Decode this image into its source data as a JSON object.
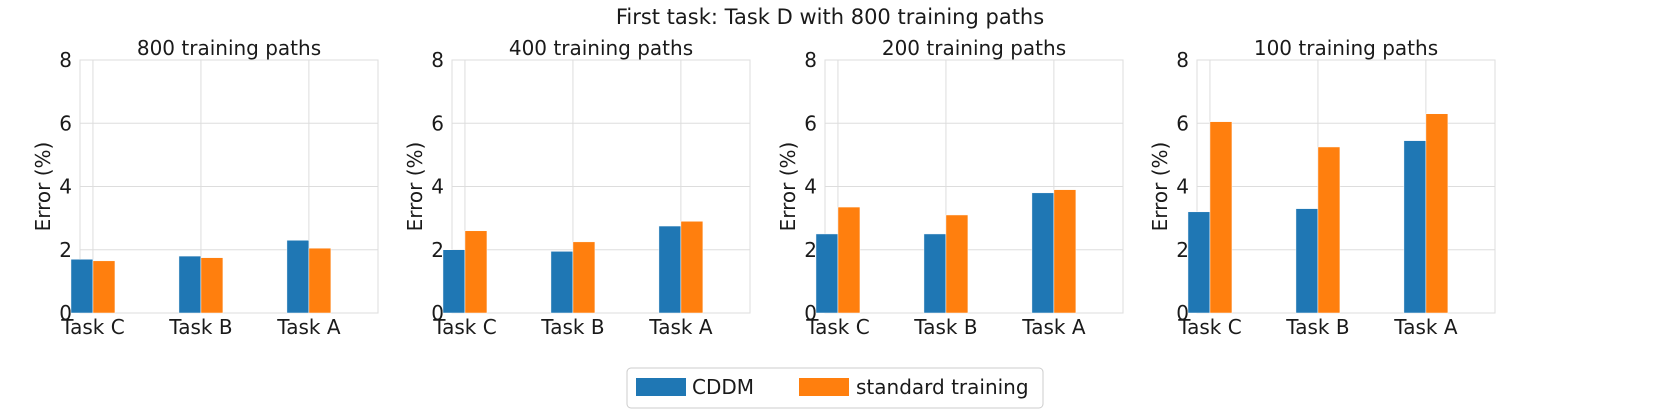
{
  "chart_data": {
    "type": "bar",
    "suptitle": "First task: Task D with 800 training paths",
    "categories": [
      "Task C",
      "Task B",
      "Task A"
    ],
    "ylabel": "Error (%)",
    "ylim": [
      0,
      8
    ],
    "yticks": [
      0,
      2,
      4,
      6,
      8
    ],
    "grid": true,
    "legend_position": "bottom-center",
    "legend": [
      {
        "name": "CDDM",
        "color": "#1f77b4"
      },
      {
        "name": "standard training",
        "color": "#ff7f0e"
      }
    ],
    "panels": [
      {
        "title": "800 training paths",
        "series": [
          {
            "name": "CDDM",
            "values": [
              1.7,
              1.8,
              2.3
            ]
          },
          {
            "name": "standard training",
            "values": [
              1.65,
              1.75,
              2.05
            ]
          }
        ]
      },
      {
        "title": "400 training paths",
        "series": [
          {
            "name": "CDDM",
            "values": [
              2.0,
              1.95,
              2.75
            ]
          },
          {
            "name": "standard training",
            "values": [
              2.6,
              2.25,
              2.9
            ]
          }
        ]
      },
      {
        "title": "200 training paths",
        "series": [
          {
            "name": "CDDM",
            "values": [
              2.5,
              2.5,
              3.8
            ]
          },
          {
            "name": "standard training",
            "values": [
              3.35,
              3.1,
              3.9
            ]
          }
        ]
      },
      {
        "title": "100 training paths",
        "series": [
          {
            "name": "CDDM",
            "values": [
              3.2,
              3.3,
              5.45
            ]
          },
          {
            "name": "standard training",
            "values": [
              6.05,
              5.25,
              6.3
            ]
          }
        ]
      }
    ]
  }
}
